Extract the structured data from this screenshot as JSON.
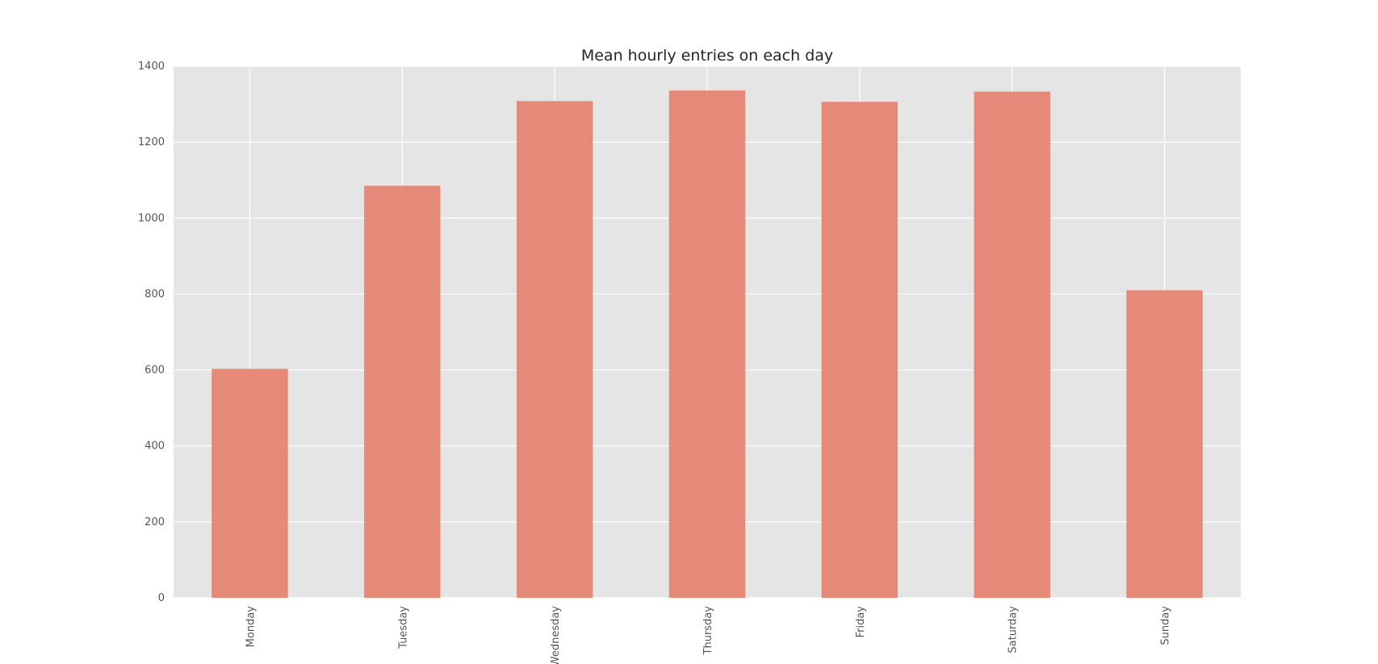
{
  "chart_data": {
    "type": "bar",
    "title": "Mean hourly entries on each day",
    "xlabel": "",
    "ylabel": "",
    "categories": [
      "Monday",
      "Tuesday",
      "Wednesday",
      "Thursday",
      "Friday",
      "Saturday",
      "Sunday"
    ],
    "values": [
      603,
      1085,
      1308,
      1336,
      1306,
      1333,
      810
    ],
    "ylim": [
      0,
      1400
    ],
    "yticks": [
      0,
      200,
      400,
      600,
      800,
      1000,
      1200,
      1400
    ],
    "grid": true,
    "legend": "none",
    "colors": {
      "bar": "#e5826f",
      "plot_background": "#e5e5e5",
      "grid": "#ffffff",
      "text": "#555555",
      "title": "#262626"
    }
  }
}
